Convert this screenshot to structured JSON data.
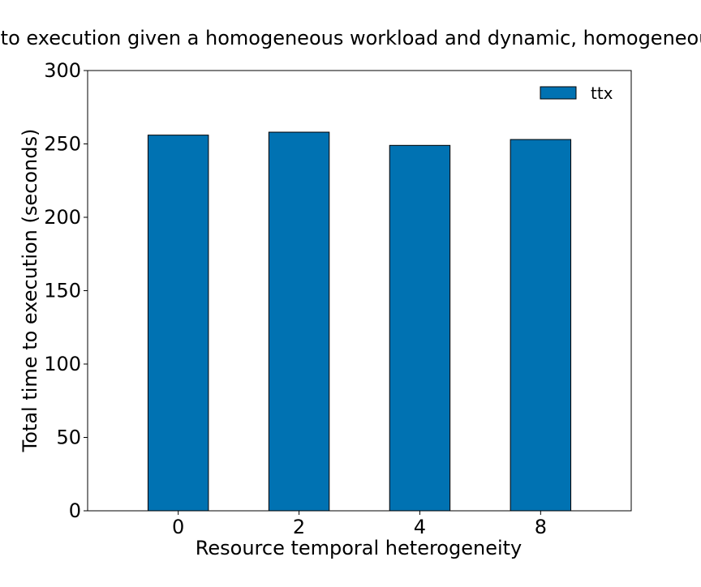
{
  "chart_data": {
    "type": "bar",
    "title": "Total time to execution given a homogeneous workload and dynamic, homogeneous resources",
    "xlabel": "Resource temporal heterogeneity",
    "ylabel": "Total time to execution (seconds)",
    "categories": [
      "0",
      "2",
      "4",
      "8"
    ],
    "series": [
      {
        "name": "ttx",
        "values": [
          256,
          258,
          249,
          253
        ],
        "color": "#0072b2"
      }
    ],
    "ylim": [
      0,
      300
    ],
    "yticks": [
      0,
      50,
      100,
      150,
      200,
      250,
      300
    ],
    "grid": false,
    "legend_position": "top-right"
  }
}
